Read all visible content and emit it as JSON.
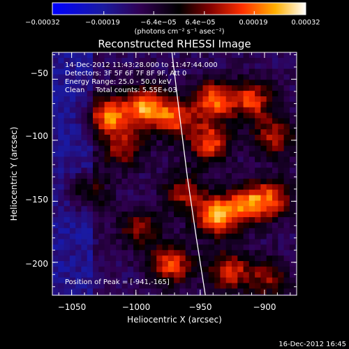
{
  "chart_data": {
    "type": "heatmap",
    "title": "Reconstructed RHESSI Image",
    "xlabel": "Heliocentric X (arcsec)",
    "ylabel": "Heliocentric Y (arcsec)",
    "xlim": [
      -1065,
      -875
    ],
    "ylim": [
      -227,
      -28
    ],
    "x_ticks": [
      {
        "value": -1050,
        "label": "−1050"
      },
      {
        "value": -1000,
        "label": "−1000"
      },
      {
        "value": -950,
        "label": "−950"
      },
      {
        "value": -900,
        "label": "−900"
      }
    ],
    "y_ticks": [
      {
        "value": -50,
        "label": "−50"
      },
      {
        "value": -100,
        "label": "−100"
      },
      {
        "value": -150,
        "label": "−150"
      },
      {
        "value": -200,
        "label": "−200"
      }
    ],
    "colorbar": {
      "range": [
        -0.00032,
        0.00032
      ],
      "tick_labels": [
        "−0.00032",
        "−0.00019",
        "−6.4e−05",
        "6.4e−05",
        "0.00019",
        "0.00032"
      ],
      "unit_label": "(photons cm⁻² s⁻¹ asec⁻²)"
    },
    "annotations": {
      "time_range": "14-Dec-2012 11:43:28.000 to 11:47:44.000",
      "detectors": "Detectors: 3F 5F 6F 7F 8F 9F, Att 0",
      "energy": "Energy Range: 25.0 - 50.0 keV",
      "clean": "Clean     Total counts: 5.55E+03",
      "peak": "Position of Peak = [-941,-165]"
    },
    "limb_curve": [
      {
        "x": -972,
        "y": -28
      },
      {
        "x": -966,
        "y": -80
      },
      {
        "x": -960,
        "y": -130
      },
      {
        "x": -953,
        "y": -180
      },
      {
        "x": -946,
        "y": -227
      }
    ],
    "hot_spots": [
      {
        "x": -1023,
        "y": -78,
        "intensity": 0.85
      },
      {
        "x": -995,
        "y": -70,
        "intensity": 0.9
      },
      {
        "x": -972,
        "y": -80,
        "intensity": 0.7
      },
      {
        "x": -942,
        "y": -65,
        "intensity": 0.85
      },
      {
        "x": -945,
        "y": -100,
        "intensity": 0.75
      },
      {
        "x": -912,
        "y": -65,
        "intensity": 0.7
      },
      {
        "x": -895,
        "y": -95,
        "intensity": 0.6
      },
      {
        "x": -940,
        "y": -160,
        "intensity": 1.0
      },
      {
        "x": -915,
        "y": -150,
        "intensity": 0.8
      },
      {
        "x": -895,
        "y": -145,
        "intensity": 0.6
      },
      {
        "x": -1040,
        "y": -140,
        "intensity": 0.45
      },
      {
        "x": -1000,
        "y": -170,
        "intensity": 0.5
      },
      {
        "x": -975,
        "y": -200,
        "intensity": 0.75
      },
      {
        "x": -930,
        "y": -205,
        "intensity": 0.7
      },
      {
        "x": -900,
        "y": -210,
        "intensity": 0.5
      },
      {
        "x": -1012,
        "y": -105,
        "intensity": 0.55
      },
      {
        "x": -965,
        "y": -140,
        "intensity": 0.55
      }
    ]
  },
  "timestamp": "16-Dec-2012 16:45"
}
